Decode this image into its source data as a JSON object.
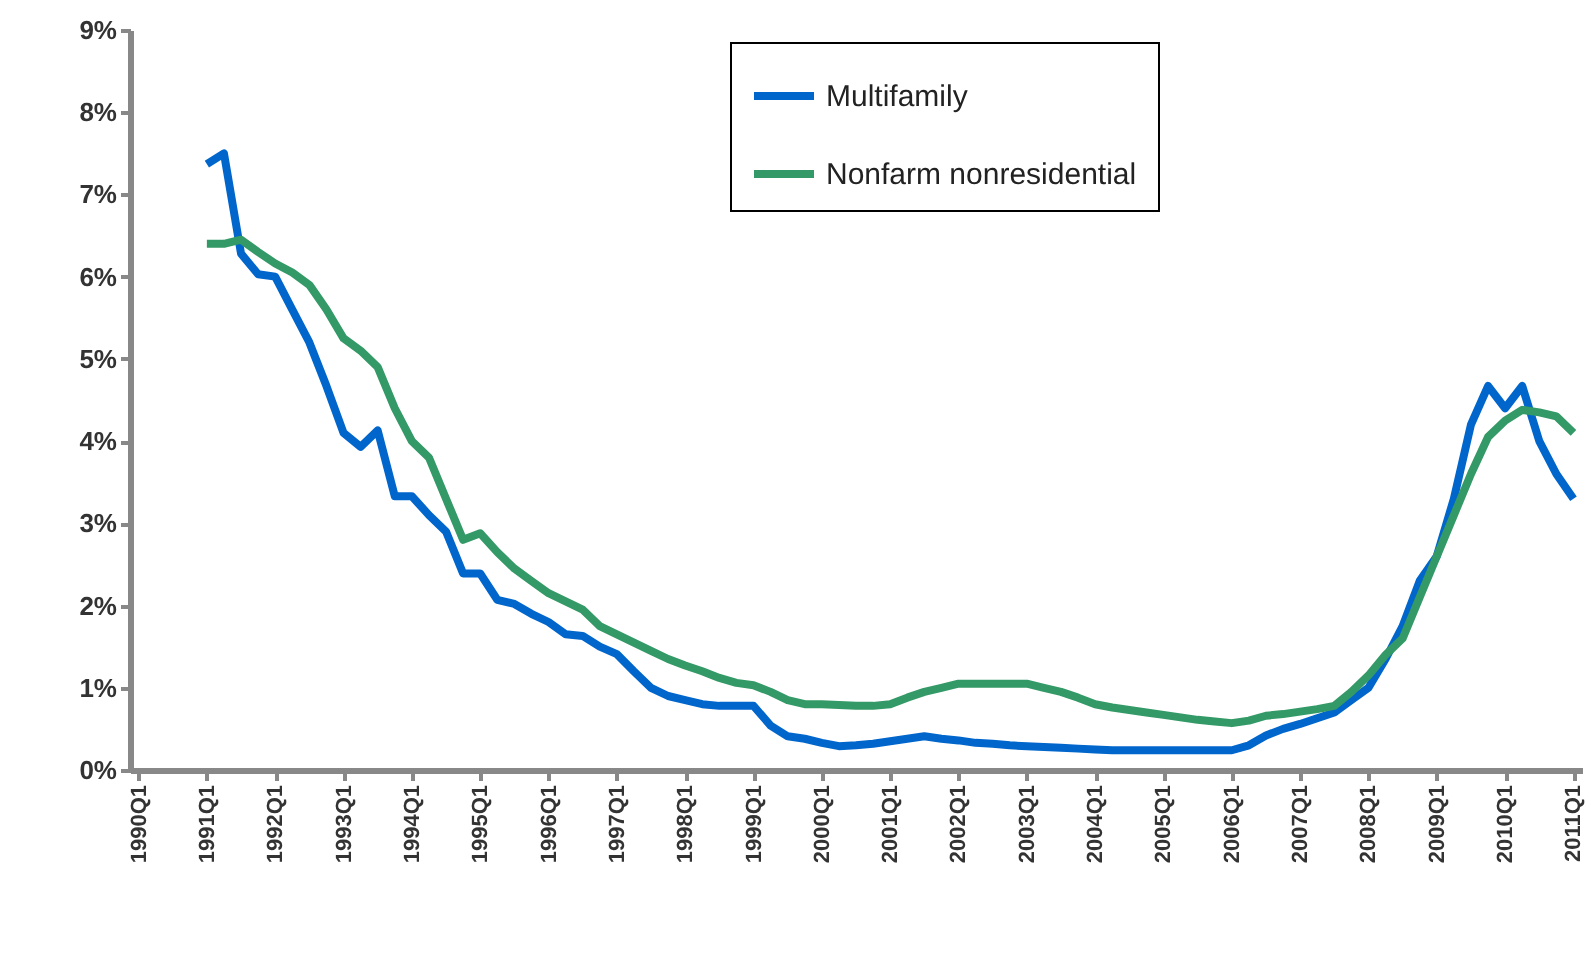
{
  "chart_data": {
    "type": "line",
    "categories": [
      "1990Q1",
      null,
      null,
      null,
      "1991Q1",
      null,
      null,
      null,
      "1992Q1",
      null,
      null,
      null,
      "1993Q1",
      null,
      null,
      null,
      "1994Q1",
      null,
      null,
      null,
      "1995Q1",
      null,
      null,
      null,
      "1996Q1",
      null,
      null,
      null,
      "1997Q1",
      null,
      null,
      null,
      "1998Q1",
      null,
      null,
      null,
      "1999Q1",
      null,
      null,
      null,
      "2000Q1",
      null,
      null,
      null,
      "2001Q1",
      null,
      null,
      null,
      "2002Q1",
      null,
      null,
      null,
      "2003Q1",
      null,
      null,
      null,
      "2004Q1",
      null,
      null,
      null,
      "2005Q1",
      null,
      null,
      null,
      "2006Q1",
      null,
      null,
      null,
      "2007Q1",
      null,
      null,
      null,
      "2008Q1",
      null,
      null,
      null,
      "2009Q1",
      null,
      null,
      null,
      "2010Q1",
      null,
      null,
      null,
      "2011Q1"
    ],
    "ylim": [
      0,
      9
    ],
    "yticks": [
      {
        "value": 0,
        "label": "0%"
      },
      {
        "value": 1,
        "label": "1%"
      },
      {
        "value": 2,
        "label": "2%"
      },
      {
        "value": 3,
        "label": "3%"
      },
      {
        "value": 4,
        "label": "4%"
      },
      {
        "value": 5,
        "label": "5%"
      },
      {
        "value": 6,
        "label": "6%"
      },
      {
        "value": 7,
        "label": "7%"
      },
      {
        "value": 8,
        "label": "8%"
      },
      {
        "value": 9,
        "label": "9%"
      }
    ],
    "grid": false,
    "legend": "top right",
    "marker": "none",
    "line_style": "solid",
    "series": [
      {
        "name": "Multifamily",
        "color": "#0066cc",
        "values": [
          null,
          null,
          null,
          null,
          7.37,
          7.5,
          6.28,
          6.03,
          6.0,
          5.6,
          5.2,
          4.67,
          4.1,
          3.93,
          4.13,
          3.33,
          3.33,
          3.1,
          2.9,
          2.39,
          2.39,
          2.07,
          2.02,
          1.9,
          1.8,
          1.65,
          1.63,
          1.5,
          1.41,
          1.2,
          1.0,
          0.9,
          0.85,
          0.8,
          0.78,
          0.78,
          0.78,
          0.54,
          0.41,
          0.38,
          0.33,
          0.29,
          0.3,
          0.32,
          0.35,
          0.38,
          0.41,
          0.38,
          0.36,
          0.33,
          0.32,
          0.3,
          0.29,
          0.28,
          0.27,
          0.26,
          0.25,
          0.24,
          0.24,
          0.24,
          0.24,
          0.24,
          0.24,
          0.24,
          0.24,
          0.3,
          0.42,
          0.5,
          0.56,
          0.63,
          0.7,
          0.85,
          1.0,
          1.35,
          1.75,
          2.3,
          2.6,
          3.3,
          4.2,
          4.67,
          4.4,
          4.67,
          4.0,
          3.6,
          3.3
        ]
      },
      {
        "name": "Nonfarm nonresidential",
        "color": "#339966",
        "values": [
          null,
          null,
          null,
          null,
          6.4,
          6.4,
          6.45,
          6.3,
          6.16,
          6.05,
          5.9,
          5.6,
          5.25,
          5.1,
          4.9,
          4.4,
          4.0,
          3.8,
          3.3,
          2.8,
          2.88,
          2.65,
          2.45,
          2.3,
          2.15,
          2.05,
          1.95,
          1.75,
          1.65,
          1.55,
          1.45,
          1.35,
          1.27,
          1.2,
          1.12,
          1.06,
          1.03,
          0.95,
          0.85,
          0.8,
          0.8,
          0.79,
          0.78,
          0.78,
          0.8,
          0.88,
          0.95,
          1.0,
          1.05,
          1.05,
          1.05,
          1.05,
          1.05,
          1.0,
          0.95,
          0.88,
          0.8,
          0.76,
          0.73,
          0.7,
          0.67,
          0.64,
          0.61,
          0.59,
          0.57,
          0.6,
          0.66,
          0.68,
          0.71,
          0.74,
          0.78,
          0.95,
          1.15,
          1.4,
          1.6,
          2.1,
          2.6,
          3.1,
          3.6,
          4.05,
          4.25,
          4.38,
          4.35,
          4.3,
          4.1
        ]
      }
    ]
  }
}
